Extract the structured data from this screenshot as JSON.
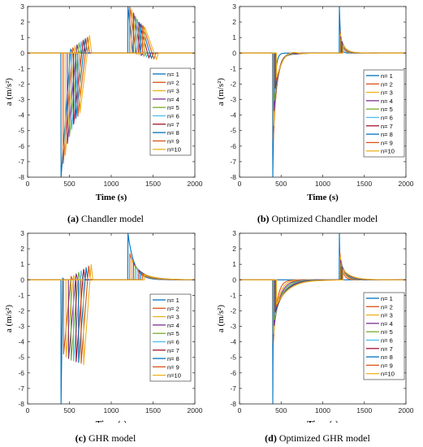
{
  "colors": [
    "#0072BD",
    "#D95319",
    "#EDB120",
    "#7E2F8E",
    "#77AC30",
    "#4DBEEE",
    "#A2142F",
    "#0072BD",
    "#D95319",
    "#EDB120"
  ],
  "legend_labels": [
    "n= 1",
    "n= 2",
    "n= 3",
    "n= 4",
    "n= 5",
    "n= 6",
    "n= 7",
    "n= 8",
    "n= 9",
    "n=10"
  ],
  "captions": [
    {
      "letter": "(a)",
      "text": "Chandler model"
    },
    {
      "letter": "(b)",
      "text": "Optimized Chandler model"
    },
    {
      "letter": "(c)",
      "text": "GHR model"
    },
    {
      "letter": "(d)",
      "text": "Optimized GHR model"
    }
  ],
  "chart_data": [
    {
      "type": "line",
      "title": "",
      "xlabel": "Time (s)",
      "ylabel": "a (m/s²)",
      "xlim": [
        0,
        2000
      ],
      "ylim": [
        -8,
        3
      ],
      "xticks": [
        0,
        500,
        1000,
        1500,
        2000
      ],
      "yticks": [
        -8,
        -7,
        -6,
        -5,
        -4,
        -3,
        -2,
        -1,
        0,
        1,
        2,
        3
      ],
      "legend_position": "right",
      "model": "chandler",
      "series": [
        {
          "name": "n= 1",
          "dec_start": 400,
          "dec_min": -8.0,
          "dec_peak": 0.25,
          "dec_end": 515,
          "acc_start": 1200,
          "acc_max": 3.0,
          "acc_min": 0.0,
          "acc_end": 1260
        },
        {
          "name": "n= 2",
          "dec_start": 425,
          "dec_min": -7.2,
          "dec_peak": 0.35,
          "dec_end": 540,
          "acc_start": 1222,
          "acc_max": 3.0,
          "acc_min": -0.05,
          "acc_end": 1300
        },
        {
          "name": "n= 3",
          "dec_start": 450,
          "dec_min": -6.6,
          "dec_peak": 0.45,
          "dec_end": 565,
          "acc_start": 1244,
          "acc_max": 2.8,
          "acc_min": -0.1,
          "acc_end": 1330
        },
        {
          "name": "n= 4",
          "dec_start": 475,
          "dec_min": -5.9,
          "dec_peak": 0.55,
          "dec_end": 590,
          "acc_start": 1266,
          "acc_max": 2.6,
          "acc_min": -0.15,
          "acc_end": 1360
        },
        {
          "name": "n= 5",
          "dec_start": 500,
          "dec_min": -5.4,
          "dec_peak": 0.65,
          "dec_end": 615,
          "acc_start": 1288,
          "acc_max": 2.4,
          "acc_min": -0.2,
          "acc_end": 1390
        },
        {
          "name": "n= 6",
          "dec_start": 525,
          "dec_min": -5.0,
          "dec_peak": 0.75,
          "dec_end": 640,
          "acc_start": 1310,
          "acc_max": 2.2,
          "acc_min": -0.25,
          "acc_end": 1420
        },
        {
          "name": "n= 7",
          "dec_start": 550,
          "dec_min": -4.6,
          "dec_peak": 0.85,
          "dec_end": 665,
          "acc_start": 1332,
          "acc_max": 2.0,
          "acc_min": -0.3,
          "acc_end": 1450
        },
        {
          "name": "n= 8",
          "dec_start": 575,
          "dec_min": -4.3,
          "dec_peak": 0.95,
          "dec_end": 690,
          "acc_start": 1354,
          "acc_max": 1.9,
          "acc_min": -0.33,
          "acc_end": 1480
        },
        {
          "name": "n= 9",
          "dec_start": 600,
          "dec_min": -4.1,
          "dec_peak": 1.05,
          "dec_end": 715,
          "acc_start": 1376,
          "acc_max": 1.8,
          "acc_min": -0.36,
          "acc_end": 1510
        },
        {
          "name": "n=10",
          "dec_start": 625,
          "dec_min": -3.9,
          "dec_peak": 1.15,
          "dec_end": 740,
          "acc_start": 1398,
          "acc_max": 1.7,
          "acc_min": -0.4,
          "acc_end": 1540
        }
      ]
    },
    {
      "type": "line",
      "title": "",
      "xlabel": "Time (s)",
      "ylabel": "a (m/s²)",
      "xlim": [
        0,
        2000
      ],
      "ylim": [
        -8,
        3
      ],
      "xticks": [
        0,
        500,
        1000,
        1500,
        2000
      ],
      "yticks": [
        -8,
        -7,
        -6,
        -5,
        -4,
        -3,
        -2,
        -1,
        0,
        1,
        2,
        3
      ],
      "legend_position": "right",
      "model": "relax",
      "series": [
        {
          "name": "n= 1",
          "dec_start": 400,
          "dec_min": -8.0,
          "dec_overshoot": 0.0,
          "dec_end": 470,
          "acc_start": 1200,
          "acc_max": 3.0,
          "acc_end": 1260
        },
        {
          "name": "n= 2",
          "dec_start": 405,
          "dec_min": -5.8,
          "dec_overshoot": 0.05,
          "dec_end": 560,
          "acc_start": 1205,
          "acc_max": 1.5,
          "acc_end": 1320
        },
        {
          "name": "n= 3",
          "dec_start": 410,
          "dec_min": -4.7,
          "dec_overshoot": 0.1,
          "dec_end": 590,
          "acc_start": 1210,
          "acc_max": 1.25,
          "acc_end": 1340
        },
        {
          "name": "n= 4",
          "dec_start": 415,
          "dec_min": -3.8,
          "dec_overshoot": 0.12,
          "dec_end": 615,
          "acc_start": 1215,
          "acc_max": 1.1,
          "acc_end": 1360
        },
        {
          "name": "n= 5",
          "dec_start": 420,
          "dec_min": -3.1,
          "dec_overshoot": 0.15,
          "dec_end": 640,
          "acc_start": 1220,
          "acc_max": 0.95,
          "acc_end": 1380
        },
        {
          "name": "n= 6",
          "dec_start": 425,
          "dec_min": -2.6,
          "dec_overshoot": 0.18,
          "dec_end": 660,
          "acc_start": 1225,
          "acc_max": 0.85,
          "acc_end": 1400
        },
        {
          "name": "n= 7",
          "dec_start": 430,
          "dec_min": -2.3,
          "dec_overshoot": 0.2,
          "dec_end": 680,
          "acc_start": 1230,
          "acc_max": 0.75,
          "acc_end": 1420
        },
        {
          "name": "n= 8",
          "dec_start": 435,
          "dec_min": -2.0,
          "dec_overshoot": 0.22,
          "dec_end": 700,
          "acc_start": 1235,
          "acc_max": 0.65,
          "acc_end": 1440
        },
        {
          "name": "n= 9",
          "dec_start": 440,
          "dec_min": -1.8,
          "dec_overshoot": 0.22,
          "dec_end": 720,
          "acc_start": 1240,
          "acc_max": 0.55,
          "acc_end": 1460
        },
        {
          "name": "n=10",
          "dec_start": 445,
          "dec_min": -1.6,
          "dec_overshoot": 0.22,
          "dec_end": 740,
          "acc_start": 1245,
          "acc_max": 0.5,
          "acc_end": 1480
        }
      ]
    },
    {
      "type": "line",
      "title": "",
      "xlabel": "Time (s)",
      "ylabel": "a (m/s²)",
      "xlim": [
        0,
        2000
      ],
      "ylim": [
        -8,
        3
      ],
      "xticks": [
        0,
        500,
        1000,
        1500,
        2000
      ],
      "yticks": [
        -8,
        -7,
        -6,
        -5,
        -4,
        -3,
        -2,
        -1,
        0,
        1,
        2,
        3
      ],
      "legend_position": "right",
      "model": "ghr",
      "series": [
        {
          "name": "n= 1",
          "dec_start": 400,
          "dec_min": -8.0,
          "dec_peak": 0.1,
          "dec_end": 420,
          "acc_start": 1200,
          "acc_max": 3.0,
          "acc_end": 1500
        },
        {
          "name": "n= 2",
          "dec_start": 430,
          "dec_min": -4.8,
          "dec_peak": 0.2,
          "dec_end": 520,
          "acc_start": 1222,
          "acc_max": 1.7,
          "acc_end": 1600
        },
        {
          "name": "n= 3",
          "dec_start": 460,
          "dec_min": -5.0,
          "dec_peak": 0.3,
          "dec_end": 550,
          "acc_start": 1244,
          "acc_max": 1.3,
          "acc_end": 1650
        },
        {
          "name": "n= 4",
          "dec_start": 490,
          "dec_min": -5.1,
          "dec_peak": 0.4,
          "dec_end": 580,
          "acc_start": 1266,
          "acc_max": 1.1,
          "acc_end": 1700
        },
        {
          "name": "n= 5",
          "dec_start": 520,
          "dec_min": -5.2,
          "dec_peak": 0.5,
          "dec_end": 610,
          "acc_start": 1288,
          "acc_max": 0.9,
          "acc_end": 1750
        },
        {
          "name": "n= 6",
          "dec_start": 550,
          "dec_min": -5.25,
          "dec_peak": 0.6,
          "dec_end": 640,
          "acc_start": 1310,
          "acc_max": 0.75,
          "acc_end": 1800
        },
        {
          "name": "n= 7",
          "dec_start": 580,
          "dec_min": -5.3,
          "dec_peak": 0.7,
          "dec_end": 670,
          "acc_start": 1332,
          "acc_max": 0.6,
          "acc_end": 1850
        },
        {
          "name": "n= 8",
          "dec_start": 610,
          "dec_min": -5.35,
          "dec_peak": 0.8,
          "dec_end": 700,
          "acc_start": 1354,
          "acc_max": 0.5,
          "acc_end": 1900
        },
        {
          "name": "n= 9",
          "dec_start": 640,
          "dec_min": -5.4,
          "dec_peak": 0.9,
          "dec_end": 730,
          "acc_start": 1376,
          "acc_max": 0.4,
          "acc_end": 1950
        },
        {
          "name": "n=10",
          "dec_start": 670,
          "dec_min": -5.5,
          "dec_peak": 1.0,
          "dec_end": 760,
          "acc_start": 1398,
          "acc_max": 0.35,
          "acc_end": 2000
        }
      ]
    },
    {
      "type": "line",
      "title": "",
      "xlabel": "Time (s)",
      "ylabel": "a (m/s²)",
      "xlim": [
        0,
        2000
      ],
      "ylim": [
        -8,
        3
      ],
      "xticks": [
        0,
        500,
        1000,
        1500,
        2000
      ],
      "yticks": [
        -8,
        -7,
        -6,
        -5,
        -4,
        -3,
        -2,
        -1,
        0,
        1,
        2,
        3
      ],
      "legend_position": "right",
      "model": "relax",
      "series": [
        {
          "name": "n= 1",
          "dec_start": 400,
          "dec_min": -8.0,
          "dec_overshoot": 0.0,
          "dec_end": 420,
          "acc_start": 1200,
          "acc_max": 3.0,
          "acc_end": 1230
        },
        {
          "name": "n= 2",
          "dec_start": 405,
          "dec_min": -4.2,
          "dec_overshoot": 0.02,
          "dec_end": 560,
          "acc_start": 1205,
          "acc_max": 1.8,
          "acc_end": 1330
        },
        {
          "name": "n= 3",
          "dec_start": 410,
          "dec_min": -3.5,
          "dec_overshoot": 0.03,
          "dec_end": 620,
          "acc_start": 1210,
          "acc_max": 1.5,
          "acc_end": 1380
        },
        {
          "name": "n= 4",
          "dec_start": 415,
          "dec_min": -3.0,
          "dec_overshoot": 0.03,
          "dec_end": 680,
          "acc_start": 1215,
          "acc_max": 1.3,
          "acc_end": 1420
        },
        {
          "name": "n= 5",
          "dec_start": 420,
          "dec_min": -2.6,
          "dec_overshoot": 0.03,
          "dec_end": 740,
          "acc_start": 1220,
          "acc_max": 1.1,
          "acc_end": 1460
        },
        {
          "name": "n= 6",
          "dec_start": 425,
          "dec_min": -2.3,
          "dec_overshoot": 0.03,
          "dec_end": 800,
          "acc_start": 1225,
          "acc_max": 0.95,
          "acc_end": 1500
        },
        {
          "name": "n= 7",
          "dec_start": 430,
          "dec_min": -2.1,
          "dec_overshoot": 0.03,
          "dec_end": 850,
          "acc_start": 1230,
          "acc_max": 0.85,
          "acc_end": 1540
        },
        {
          "name": "n= 8",
          "dec_start": 435,
          "dec_min": -1.9,
          "dec_overshoot": 0.03,
          "dec_end": 900,
          "acc_start": 1235,
          "acc_max": 0.75,
          "acc_end": 1580
        },
        {
          "name": "n= 9",
          "dec_start": 440,
          "dec_min": -1.75,
          "dec_overshoot": 0.03,
          "dec_end": 950,
          "acc_start": 1240,
          "acc_max": 0.7,
          "acc_end": 1620
        },
        {
          "name": "n=10",
          "dec_start": 445,
          "dec_min": -1.6,
          "dec_overshoot": 0.03,
          "dec_end": 1000,
          "acc_start": 1245,
          "acc_max": 0.65,
          "acc_end": 1660
        }
      ]
    }
  ]
}
